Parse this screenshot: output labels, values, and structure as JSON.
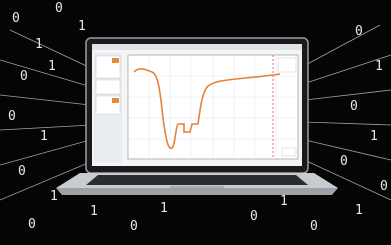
{
  "background_digits": [
    "0",
    "1",
    "0",
    "1",
    "0",
    "1",
    "0",
    "1",
    "0",
    "1",
    "0",
    "1",
    "0",
    "1",
    "0",
    "1",
    "0",
    "1",
    "0",
    "0",
    "1",
    "0",
    "1",
    "0"
  ]
}
